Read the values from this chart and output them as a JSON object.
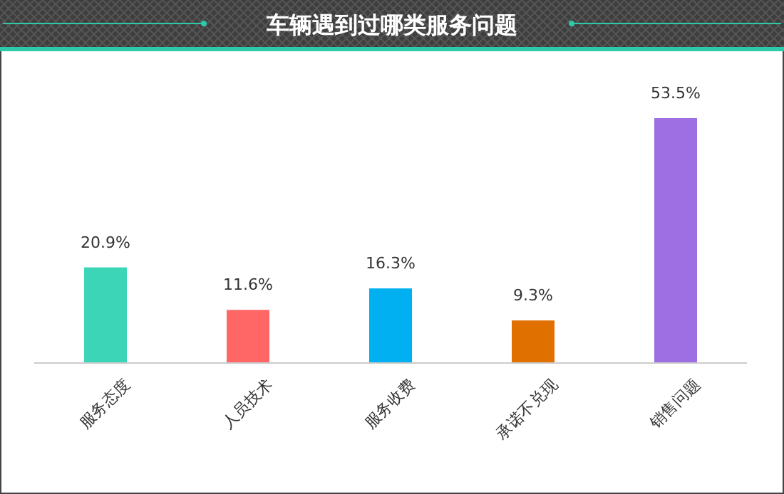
{
  "chart_data": {
    "type": "bar",
    "title": "车辆遇到过哪类服务问题",
    "categories": [
      "服务态度",
      "人员技术",
      "服务收费",
      "承诺不兑现",
      "销售问题"
    ],
    "values": [
      20.9,
      11.6,
      16.3,
      9.3,
      53.5
    ],
    "value_labels": [
      "20.9%",
      "11.6%",
      "16.3%",
      "9.3%",
      "53.5%"
    ],
    "colors": [
      "#3dd5b8",
      "#ff6666",
      "#00b0f0",
      "#e07000",
      "#9e6fe3"
    ]
  }
}
